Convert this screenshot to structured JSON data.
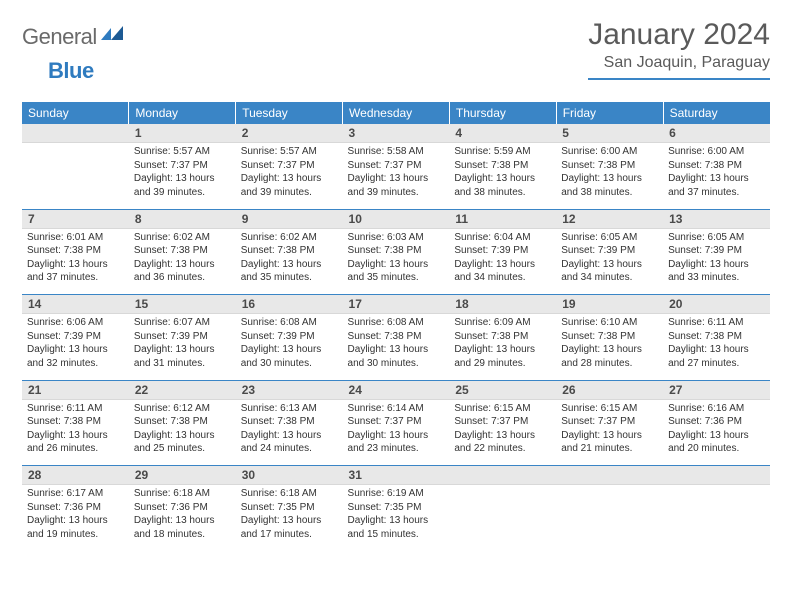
{
  "brand": {
    "text1": "General",
    "text2": "Blue"
  },
  "title": "January 2024",
  "location": "San Joaquin, Paraguay",
  "colors": {
    "header_bg": "#3a85c6",
    "header_text": "#ffffff",
    "daynum_bg": "#e8e8e8",
    "text": "#333333",
    "rule": "#3a85c6"
  },
  "weekdays": [
    "Sunday",
    "Monday",
    "Tuesday",
    "Wednesday",
    "Thursday",
    "Friday",
    "Saturday"
  ],
  "weeks": [
    [
      {
        "n": "",
        "sr": "",
        "ss": "",
        "dl": ""
      },
      {
        "n": "1",
        "sr": "Sunrise: 5:57 AM",
        "ss": "Sunset: 7:37 PM",
        "dl": "Daylight: 13 hours and 39 minutes."
      },
      {
        "n": "2",
        "sr": "Sunrise: 5:57 AM",
        "ss": "Sunset: 7:37 PM",
        "dl": "Daylight: 13 hours and 39 minutes."
      },
      {
        "n": "3",
        "sr": "Sunrise: 5:58 AM",
        "ss": "Sunset: 7:37 PM",
        "dl": "Daylight: 13 hours and 39 minutes."
      },
      {
        "n": "4",
        "sr": "Sunrise: 5:59 AM",
        "ss": "Sunset: 7:38 PM",
        "dl": "Daylight: 13 hours and 38 minutes."
      },
      {
        "n": "5",
        "sr": "Sunrise: 6:00 AM",
        "ss": "Sunset: 7:38 PM",
        "dl": "Daylight: 13 hours and 38 minutes."
      },
      {
        "n": "6",
        "sr": "Sunrise: 6:00 AM",
        "ss": "Sunset: 7:38 PM",
        "dl": "Daylight: 13 hours and 37 minutes."
      }
    ],
    [
      {
        "n": "7",
        "sr": "Sunrise: 6:01 AM",
        "ss": "Sunset: 7:38 PM",
        "dl": "Daylight: 13 hours and 37 minutes."
      },
      {
        "n": "8",
        "sr": "Sunrise: 6:02 AM",
        "ss": "Sunset: 7:38 PM",
        "dl": "Daylight: 13 hours and 36 minutes."
      },
      {
        "n": "9",
        "sr": "Sunrise: 6:02 AM",
        "ss": "Sunset: 7:38 PM",
        "dl": "Daylight: 13 hours and 35 minutes."
      },
      {
        "n": "10",
        "sr": "Sunrise: 6:03 AM",
        "ss": "Sunset: 7:38 PM",
        "dl": "Daylight: 13 hours and 35 minutes."
      },
      {
        "n": "11",
        "sr": "Sunrise: 6:04 AM",
        "ss": "Sunset: 7:39 PM",
        "dl": "Daylight: 13 hours and 34 minutes."
      },
      {
        "n": "12",
        "sr": "Sunrise: 6:05 AM",
        "ss": "Sunset: 7:39 PM",
        "dl": "Daylight: 13 hours and 34 minutes."
      },
      {
        "n": "13",
        "sr": "Sunrise: 6:05 AM",
        "ss": "Sunset: 7:39 PM",
        "dl": "Daylight: 13 hours and 33 minutes."
      }
    ],
    [
      {
        "n": "14",
        "sr": "Sunrise: 6:06 AM",
        "ss": "Sunset: 7:39 PM",
        "dl": "Daylight: 13 hours and 32 minutes."
      },
      {
        "n": "15",
        "sr": "Sunrise: 6:07 AM",
        "ss": "Sunset: 7:39 PM",
        "dl": "Daylight: 13 hours and 31 minutes."
      },
      {
        "n": "16",
        "sr": "Sunrise: 6:08 AM",
        "ss": "Sunset: 7:39 PM",
        "dl": "Daylight: 13 hours and 30 minutes."
      },
      {
        "n": "17",
        "sr": "Sunrise: 6:08 AM",
        "ss": "Sunset: 7:38 PM",
        "dl": "Daylight: 13 hours and 30 minutes."
      },
      {
        "n": "18",
        "sr": "Sunrise: 6:09 AM",
        "ss": "Sunset: 7:38 PM",
        "dl": "Daylight: 13 hours and 29 minutes."
      },
      {
        "n": "19",
        "sr": "Sunrise: 6:10 AM",
        "ss": "Sunset: 7:38 PM",
        "dl": "Daylight: 13 hours and 28 minutes."
      },
      {
        "n": "20",
        "sr": "Sunrise: 6:11 AM",
        "ss": "Sunset: 7:38 PM",
        "dl": "Daylight: 13 hours and 27 minutes."
      }
    ],
    [
      {
        "n": "21",
        "sr": "Sunrise: 6:11 AM",
        "ss": "Sunset: 7:38 PM",
        "dl": "Daylight: 13 hours and 26 minutes."
      },
      {
        "n": "22",
        "sr": "Sunrise: 6:12 AM",
        "ss": "Sunset: 7:38 PM",
        "dl": "Daylight: 13 hours and 25 minutes."
      },
      {
        "n": "23",
        "sr": "Sunrise: 6:13 AM",
        "ss": "Sunset: 7:38 PM",
        "dl": "Daylight: 13 hours and 24 minutes."
      },
      {
        "n": "24",
        "sr": "Sunrise: 6:14 AM",
        "ss": "Sunset: 7:37 PM",
        "dl": "Daylight: 13 hours and 23 minutes."
      },
      {
        "n": "25",
        "sr": "Sunrise: 6:15 AM",
        "ss": "Sunset: 7:37 PM",
        "dl": "Daylight: 13 hours and 22 minutes."
      },
      {
        "n": "26",
        "sr": "Sunrise: 6:15 AM",
        "ss": "Sunset: 7:37 PM",
        "dl": "Daylight: 13 hours and 21 minutes."
      },
      {
        "n": "27",
        "sr": "Sunrise: 6:16 AM",
        "ss": "Sunset: 7:36 PM",
        "dl": "Daylight: 13 hours and 20 minutes."
      }
    ],
    [
      {
        "n": "28",
        "sr": "Sunrise: 6:17 AM",
        "ss": "Sunset: 7:36 PM",
        "dl": "Daylight: 13 hours and 19 minutes."
      },
      {
        "n": "29",
        "sr": "Sunrise: 6:18 AM",
        "ss": "Sunset: 7:36 PM",
        "dl": "Daylight: 13 hours and 18 minutes."
      },
      {
        "n": "30",
        "sr": "Sunrise: 6:18 AM",
        "ss": "Sunset: 7:35 PM",
        "dl": "Daylight: 13 hours and 17 minutes."
      },
      {
        "n": "31",
        "sr": "Sunrise: 6:19 AM",
        "ss": "Sunset: 7:35 PM",
        "dl": "Daylight: 13 hours and 15 minutes."
      },
      {
        "n": "",
        "sr": "",
        "ss": "",
        "dl": ""
      },
      {
        "n": "",
        "sr": "",
        "ss": "",
        "dl": ""
      },
      {
        "n": "",
        "sr": "",
        "ss": "",
        "dl": ""
      }
    ]
  ]
}
